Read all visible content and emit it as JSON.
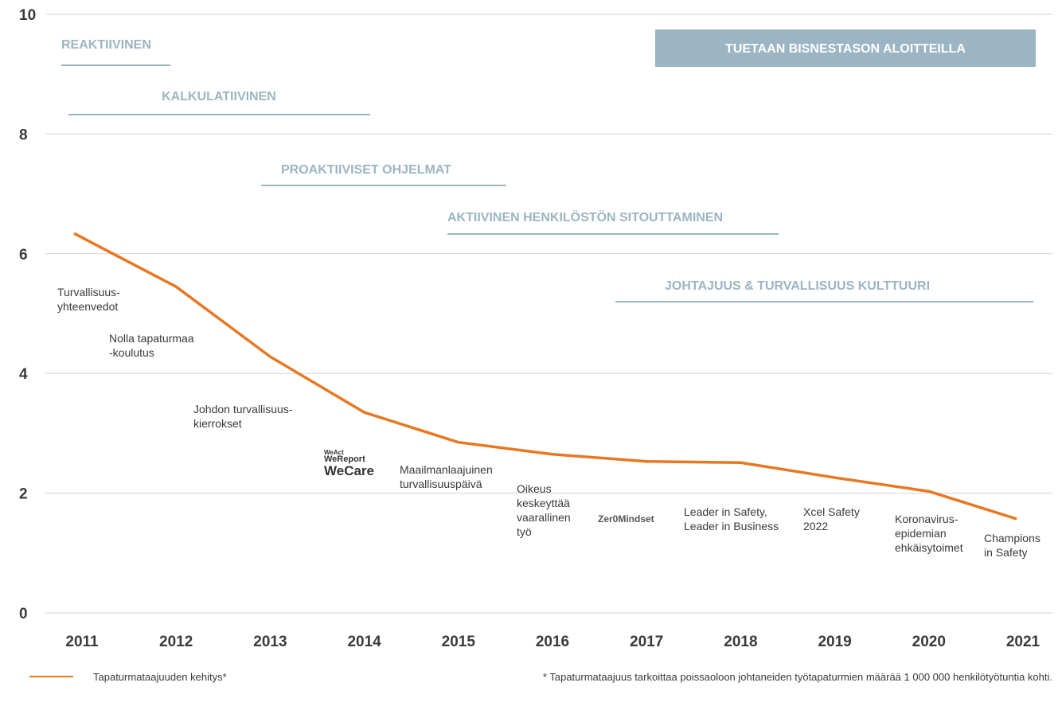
{
  "chart_data": {
    "type": "line",
    "categories": [
      "2011",
      "2012",
      "2013",
      "2014",
      "2015",
      "2016",
      "2017",
      "2018",
      "2019",
      "2020",
      "2021"
    ],
    "series": [
      {
        "name": "Tapaturmataajuuden kehitys*",
        "color": "#e87722",
        "values": [
          6.34,
          5.45,
          4.28,
          3.35,
          2.85,
          2.65,
          2.53,
          2.51,
          2.26,
          2.03,
          1.57
        ]
      }
    ],
    "ylim": [
      0,
      10
    ],
    "yticks": [
      0,
      2,
      4,
      6,
      8,
      10
    ],
    "grid": true,
    "phases": [
      "REAKTIIVINEN",
      "KALKULATIIVINEN",
      "PROAKTIIVISET OHJELMAT",
      "AKTIIVINEN HENKILÖSTÖN SITOUTTAMINEN",
      "JOHTAJUUS & TURVALLISUUS KULTTUURI",
      "TUETAAN BISNESTASON ALOITTEILLA"
    ],
    "milestones": [
      {
        "lines": [
          "Turvallisuus-",
          "yhteenvedot"
        ]
      },
      {
        "lines": [
          "Nolla tapaturmaa",
          "-koulutus"
        ]
      },
      {
        "lines": [
          "Johdon turvallisuus-",
          "kierrokset"
        ]
      },
      {
        "lines": [
          "WeAct",
          "WeReport",
          "WeCare"
        ]
      },
      {
        "lines": [
          "Maailmanlaajuinen",
          "turvallisuuspäivä"
        ]
      },
      {
        "lines": [
          "Oikeus",
          "keskeyttää",
          "vaarallinen",
          "työ"
        ]
      },
      {
        "lines": [
          "Zer0Mindset"
        ]
      },
      {
        "lines": [
          "Leader in Safety,",
          "Leader in Business"
        ]
      },
      {
        "lines": [
          "Xcel Safety",
          "2022"
        ]
      },
      {
        "lines": [
          "Koronavirus-",
          "epidemian",
          "ehkäisytoimet"
        ]
      },
      {
        "lines": [
          "Champions",
          "in Safety"
        ]
      }
    ],
    "footnote": "* Tapaturmataajuus tarkoittaa poissaoloon johtaneiden työtapaturmien määrää 1 000 000 henkilötyötuntia kohti."
  }
}
